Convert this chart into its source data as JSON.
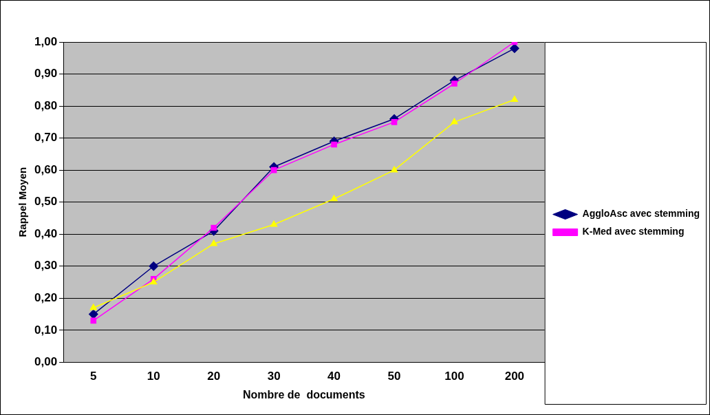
{
  "chart_data": {
    "type": "line",
    "xlabel": "Nombre de  documents",
    "ylabel": "Rappel Moyen",
    "categories": [
      "5",
      "10",
      "20",
      "30",
      "40",
      "50",
      "100",
      "200"
    ],
    "series": [
      {
        "name": "AggloAsc avec stemming",
        "color": "#000080",
        "marker": "diamond",
        "values": [
          0.15,
          0.3,
          0.41,
          0.61,
          0.69,
          0.76,
          0.88,
          0.98
        ]
      },
      {
        "name": "K-Med avec stemming",
        "color": "#ff00ff",
        "marker": "square",
        "values": [
          0.13,
          0.26,
          0.42,
          0.6,
          0.68,
          0.75,
          0.87,
          1.0
        ]
      },
      {
        "color": "#ffff00",
        "marker": "triangle",
        "values": [
          0.17,
          0.25,
          0.37,
          0.43,
          0.51,
          0.6,
          0.75,
          0.82
        ]
      }
    ],
    "ylim": [
      0,
      1
    ],
    "yticks": [
      {
        "value": 0,
        "label": "0,00"
      },
      {
        "value": 0.1,
        "label": "0,10"
      },
      {
        "value": 0.2,
        "label": "0,20"
      },
      {
        "value": 0.3,
        "label": "0,30"
      },
      {
        "value": 0.4,
        "label": "0,40"
      },
      {
        "value": 0.5,
        "label": "0,50"
      },
      {
        "value": 0.6,
        "label": "0,60"
      },
      {
        "value": 0.7,
        "label": "0,70"
      },
      {
        "value": 0.8,
        "label": "0,80"
      },
      {
        "value": 0.9,
        "label": "0,90"
      },
      {
        "value": 1,
        "label": "1,00"
      }
    ],
    "grid": "y",
    "legend": "right",
    "line_style": "solid"
  }
}
